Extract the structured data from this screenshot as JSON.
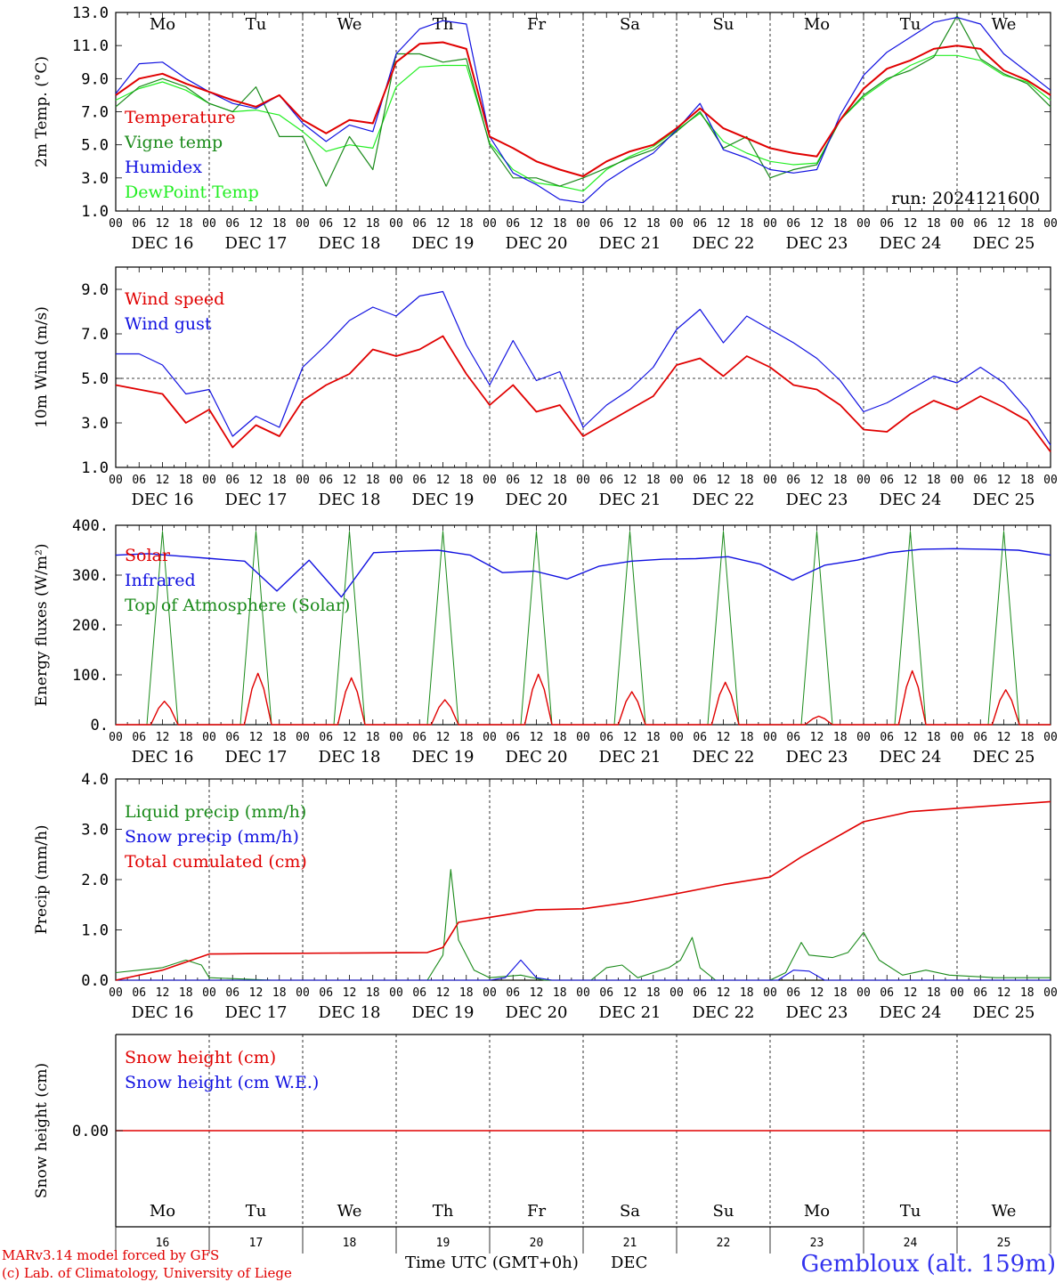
{
  "days": [
    "Mo",
    "Tu",
    "We",
    "Th",
    "Fr",
    "Sa",
    "Su",
    "Mo",
    "Tu",
    "We"
  ],
  "weekend_days": [
    5,
    6
  ],
  "dates": [
    "DEC 16",
    "DEC 17",
    "DEC 18",
    "DEC 19",
    "DEC 20",
    "DEC 21",
    "DEC 22",
    "DEC 23",
    "DEC 24",
    "DEC 25"
  ],
  "day_numbers": [
    "16",
    "17",
    "18",
    "19",
    "20",
    "21",
    "22",
    "23",
    "24",
    "25"
  ],
  "hour_ticks": [
    "00",
    "06",
    "12",
    "18"
  ],
  "final_hour_tick": "00",
  "run_label": "run: 2024121600",
  "x_title": "Time UTC (GMT+0h)",
  "x_month": "DEC",
  "footer_line1": "MARv3.14 model forced by GFS",
  "footer_line2": "(c) Lab. of Climatology, University of Liege",
  "station": "Gembloux (alt. 159m)",
  "colors": {
    "red": "#e00000",
    "green": "#1a8a1a",
    "blue": "#1010e0",
    "lightgreen": "#22ee22",
    "weekend": "#e00000",
    "station": "#3333ee"
  },
  "chart_data": [
    {
      "type": "line",
      "ylabel": "2m Temp. (°C)",
      "ylim": [
        1,
        13
      ],
      "yticks": [
        "1.0",
        "3.0",
        "5.0",
        "7.0",
        "9.0",
        "11.0",
        "13.0"
      ],
      "x_hours": [
        0,
        6,
        12,
        18,
        24,
        30,
        36,
        42,
        48,
        54,
        60,
        66,
        72,
        78,
        84,
        90,
        96,
        102,
        108,
        114,
        120,
        126,
        132,
        138,
        144,
        150,
        156,
        162,
        168,
        174,
        180,
        186,
        192,
        198,
        204,
        210,
        216,
        222,
        228,
        234,
        240
      ],
      "series": [
        {
          "name": "Temperature",
          "color": "red",
          "values": [
            8,
            9,
            9.3,
            8.7,
            8.2,
            7.7,
            7.3,
            8,
            6.5,
            5.7,
            6.5,
            6.3,
            10,
            11.1,
            11.2,
            10.8,
            5.5,
            4.8,
            4,
            3.5,
            3.1,
            4,
            4.6,
            5,
            6,
            7.2,
            6,
            5.4,
            4.8,
            4.5,
            4.3,
            6.5,
            8.4,
            9.6,
            10.1,
            10.8,
            11,
            10.8,
            9.5,
            8.9,
            8
          ]
        },
        {
          "name": "Vigne temp",
          "color": "green",
          "values": [
            7.3,
            8.5,
            9,
            8.5,
            7.5,
            7,
            8.5,
            5.5,
            5.5,
            2.5,
            5.5,
            3.5,
            10.5,
            10.5,
            10,
            10.2,
            5,
            3,
            3,
            2.5,
            3,
            3.6,
            4.2,
            4.7,
            5.8,
            7,
            4.8,
            5.5,
            3,
            3.5,
            3.8,
            6.5,
            8,
            9,
            9.5,
            10.3,
            12.8,
            10.2,
            9.3,
            8.7,
            7.3
          ]
        },
        {
          "name": "Humidex",
          "color": "blue",
          "values": [
            8.1,
            9.9,
            10,
            9,
            8.2,
            7.5,
            7.2,
            8,
            6.3,
            5.2,
            6.2,
            5.8,
            10.5,
            12,
            12.5,
            12.3,
            5.5,
            3.3,
            2.6,
            1.7,
            1.5,
            2.8,
            3.7,
            4.5,
            5.9,
            7.5,
            4.7,
            4.2,
            3.5,
            3.3,
            3.5,
            6.8,
            9.2,
            10.6,
            11.5,
            12.4,
            12.7,
            12.3,
            10.5,
            9.4,
            8.3
          ]
        },
        {
          "name": "DewPoint Temp",
          "color": "lightgreen",
          "values": [
            7.7,
            8.4,
            8.8,
            8.3,
            7.5,
            7,
            7.1,
            6.8,
            5.8,
            4.6,
            5,
            4.8,
            8.5,
            9.7,
            9.8,
            9.8,
            5.1,
            3.5,
            2.7,
            2.5,
            2.2,
            3.5,
            4.3,
            4.9,
            5.9,
            6.9,
            5.2,
            4.5,
            4,
            3.8,
            3.9,
            6.5,
            7.9,
            8.9,
            9.8,
            10.4,
            10.4,
            10.1,
            9.2,
            8.8,
            7.7
          ]
        }
      ]
    },
    {
      "type": "line",
      "ylabel": "10m Wind (m/s)",
      "ylim": [
        1,
        10
      ],
      "yticks": [
        "1.0",
        "3.0",
        "5.0",
        "7.0",
        "9.0"
      ],
      "reference_line": 5,
      "x_hours": [
        0,
        6,
        12,
        18,
        24,
        30,
        36,
        42,
        48,
        54,
        60,
        66,
        72,
        78,
        84,
        90,
        96,
        102,
        108,
        114,
        120,
        126,
        132,
        138,
        144,
        150,
        156,
        162,
        168,
        174,
        180,
        186,
        192,
        198,
        204,
        210,
        216,
        222,
        228,
        234,
        240
      ],
      "series": [
        {
          "name": "Wind speed",
          "color": "red",
          "values": [
            4.7,
            4.5,
            4.3,
            3,
            3.6,
            1.9,
            2.9,
            2.4,
            4,
            4.7,
            5.2,
            6.3,
            6,
            6.3,
            6.9,
            5.2,
            3.8,
            4.7,
            3.5,
            3.8,
            2.4,
            3,
            3.6,
            4.2,
            5.6,
            5.9,
            5.1,
            6,
            5.5,
            4.7,
            4.5,
            3.8,
            2.7,
            2.6,
            3.4,
            4,
            3.6,
            4.2,
            3.7,
            3.1,
            1.7
          ]
        },
        {
          "name": "Wind gust",
          "color": "blue",
          "values": [
            6.1,
            6.1,
            5.6,
            4.3,
            4.5,
            2.4,
            3.3,
            2.8,
            5.5,
            6.5,
            7.6,
            8.2,
            7.8,
            8.7,
            8.9,
            6.5,
            4.7,
            6.7,
            4.9,
            5.3,
            2.8,
            3.8,
            4.5,
            5.5,
            7.2,
            8.1,
            6.6,
            7.8,
            7.2,
            6.6,
            5.9,
            4.9,
            3.5,
            3.9,
            4.5,
            5.1,
            4.8,
            5.5,
            4.8,
            3.6,
            2
          ]
        }
      ]
    },
    {
      "type": "line",
      "ylabel": "Energy fluxes (W/m²)",
      "ylim": [
        0,
        400
      ],
      "yticks": [
        "0.",
        "100.",
        "200.",
        "300.",
        "400."
      ],
      "series": [
        {
          "name": "Solar",
          "color": "red",
          "peaks": [
            47,
            103,
            94,
            50,
            101,
            66,
            85,
            17,
            108,
            70
          ]
        },
        {
          "name": "Infrared",
          "color": "blue",
          "values": [
            340,
            343,
            338,
            333,
            328,
            268,
            330,
            256,
            345,
            348,
            350,
            340,
            305,
            308,
            292,
            318,
            328,
            332,
            333,
            337,
            322,
            290,
            320,
            330,
            345,
            352,
            353,
            352,
            350,
            340
          ]
        },
        {
          "name": "Top of Atmosphere (Solar)",
          "color": "green",
          "peak": 388
        }
      ]
    },
    {
      "type": "line",
      "ylabel": "Precip (mm/h)",
      "ylim": [
        0,
        4
      ],
      "yticks": [
        "0.0",
        "1.0",
        "2.0",
        "3.0",
        "4.0"
      ],
      "series": [
        {
          "name": "Liquid precip (mm/h)",
          "color": "green",
          "values": [
            [
              0,
              0.15
            ],
            [
              6,
              0.2
            ],
            [
              12,
              0.25
            ],
            [
              18,
              0.4
            ],
            [
              22,
              0.3
            ],
            [
              24,
              0.05
            ],
            [
              40,
              0
            ],
            [
              80,
              0
            ],
            [
              84,
              0.5
            ],
            [
              86,
              2.2
            ],
            [
              88,
              0.8
            ],
            [
              92,
              0.2
            ],
            [
              96,
              0.05
            ],
            [
              104,
              0.1
            ],
            [
              110,
              0
            ],
            [
              122,
              0
            ],
            [
              126,
              0.25
            ],
            [
              130,
              0.3
            ],
            [
              134,
              0.05
            ],
            [
              142,
              0.25
            ],
            [
              145,
              0.4
            ],
            [
              148,
              0.85
            ],
            [
              150,
              0.25
            ],
            [
              154,
              0
            ],
            [
              168,
              0
            ],
            [
              172,
              0.15
            ],
            [
              176,
              0.75
            ],
            [
              178,
              0.5
            ],
            [
              184,
              0.45
            ],
            [
              188,
              0.55
            ],
            [
              192,
              0.95
            ],
            [
              196,
              0.4
            ],
            [
              202,
              0.1
            ],
            [
              208,
              0.2
            ],
            [
              214,
              0.1
            ],
            [
              226,
              0.05
            ],
            [
              240,
              0.05
            ]
          ]
        },
        {
          "name": "Snow precip (mm/h)",
          "color": "blue",
          "values": [
            [
              0,
              0
            ],
            [
              96,
              0
            ],
            [
              100,
              0.05
            ],
            [
              104,
              0.4
            ],
            [
              108,
              0.05
            ],
            [
              112,
              0
            ],
            [
              170,
              0
            ],
            [
              174,
              0.2
            ],
            [
              178,
              0.18
            ],
            [
              182,
              0
            ],
            [
              240,
              0
            ]
          ]
        },
        {
          "name": "Total cumulated (cm)",
          "color": "red",
          "values": [
            [
              0,
              0
            ],
            [
              12,
              0.2
            ],
            [
              24,
              0.52
            ],
            [
              36,
              0.53
            ],
            [
              80,
              0.55
            ],
            [
              84,
              0.65
            ],
            [
              88,
              1.15
            ],
            [
              96,
              1.25
            ],
            [
              108,
              1.4
            ],
            [
              120,
              1.42
            ],
            [
              132,
              1.55
            ],
            [
              144,
              1.72
            ],
            [
              156,
              1.9
            ],
            [
              168,
              2.05
            ],
            [
              176,
              2.45
            ],
            [
              192,
              3.15
            ],
            [
              204,
              3.35
            ],
            [
              240,
              3.55
            ]
          ]
        }
      ]
    },
    {
      "type": "line",
      "ylabel": "Snow height (cm)",
      "yticks": [
        "0.00"
      ],
      "series": [
        {
          "name": "Snow height (cm)",
          "color": "red",
          "values": [
            0
          ]
        },
        {
          "name": "Snow height (cm W.E.)",
          "color": "blue",
          "values": [
            0
          ]
        }
      ]
    }
  ]
}
